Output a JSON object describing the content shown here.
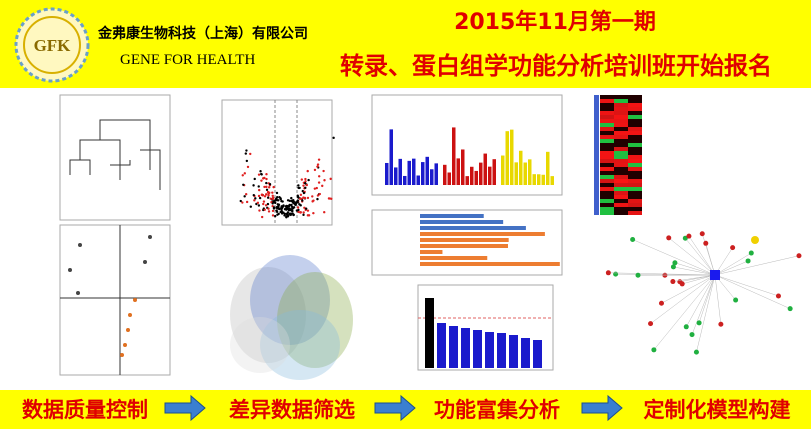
{
  "header": {
    "logo": "GFK",
    "company_cn": "金弗康生物科技（上海）有限公司",
    "company_en": "GENE FOR HEALTH",
    "issue": "2015年11月第一期",
    "headline": "转录、蛋白组学功能分析培训班开始报名"
  },
  "steps": [
    "数据质量控制",
    "差异数据筛选",
    "功能富集分析",
    "定制化模型构建"
  ]
}
